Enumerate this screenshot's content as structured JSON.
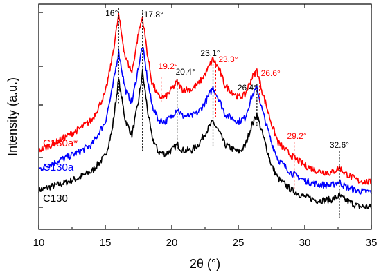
{
  "chart_data": {
    "type": "line",
    "title": "",
    "xlabel": "2θ (°)",
    "ylabel": "Intensity (a.u.)",
    "xlim": [
      10,
      35
    ],
    "x_ticks": [
      10,
      15,
      20,
      25,
      30,
      35
    ],
    "y_ticks_shown": false,
    "grid": false,
    "legend": "series labels left of curves",
    "peaks": [
      16,
      17.8,
      20.4,
      23.1,
      26.4,
      32.6
    ],
    "x": [
      10,
      11,
      12,
      13,
      14,
      15,
      15.5,
      16,
      16.5,
      17,
      17.5,
      17.8,
      18.2,
      18.5,
      19,
      19.5,
      20,
      20.4,
      20.8,
      21.5,
      22,
      22.5,
      23.1,
      23.6,
      24,
      25,
      25.5,
      26,
      26.4,
      26.8,
      27.5,
      28,
      29,
      30,
      31,
      32,
      32.6,
      33,
      34,
      35
    ],
    "series": [
      {
        "name": "C130",
        "color": "#000000",
        "values": [
          0.9,
          1.1,
          1.3,
          1.55,
          1.9,
          2.7,
          4.0,
          6.7,
          4.6,
          3.8,
          5.6,
          7.1,
          5.0,
          3.7,
          2.9,
          2.8,
          3.0,
          3.3,
          3.0,
          3.0,
          3.3,
          3.9,
          4.5,
          3.9,
          3.3,
          2.9,
          3.2,
          4.3,
          4.9,
          3.9,
          2.2,
          1.5,
          0.9,
          0.55,
          0.35,
          0.4,
          0.6,
          0.4,
          0.05,
          0.0
        ]
      },
      {
        "name": "C130a",
        "color": "#0000ff",
        "values": [
          2.0,
          2.3,
          2.6,
          2.9,
          3.3,
          4.5,
          6.1,
          8.2,
          6.2,
          5.5,
          7.4,
          8.5,
          6.6,
          5.4,
          4.6,
          4.5,
          4.8,
          5.2,
          4.8,
          4.8,
          5.0,
          5.5,
          6.3,
          5.6,
          4.9,
          4.5,
          4.7,
          5.8,
          6.3,
          5.1,
          3.4,
          2.5,
          1.8,
          1.4,
          1.2,
          1.15,
          1.35,
          1.1,
          0.85,
          0.8
        ]
      },
      {
        "name": "C130a*",
        "color": "#ff0000",
        "values": [
          3.0,
          3.3,
          3.7,
          4.1,
          4.6,
          6.0,
          7.8,
          10.1,
          7.9,
          7.1,
          9.2,
          10.0,
          7.9,
          6.6,
          5.8,
          5.8,
          6.2,
          6.6,
          6.2,
          6.2,
          6.5,
          7.0,
          7.8,
          7.2,
          6.4,
          5.8,
          5.9,
          6.8,
          7.2,
          6.1,
          4.4,
          3.4,
          2.7,
          2.2,
          1.9,
          1.8,
          2.1,
          1.8,
          1.4,
          1.3
        ]
      }
    ],
    "annotations": [
      {
        "label": "16°",
        "x": 16,
        "color": "#000000"
      },
      {
        "label": "17.8°",
        "x": 17.8,
        "color": "#000000"
      },
      {
        "label": "19.2°",
        "x": 19.2,
        "color": "#ff0000"
      },
      {
        "label": "20.4°",
        "x": 20.4,
        "color": "#000000"
      },
      {
        "label": "23.1°",
        "x": 23.1,
        "color": "#000000"
      },
      {
        "label": "23.3°",
        "x": 23.3,
        "color": "#ff0000"
      },
      {
        "label": "26.4°",
        "x": 26.4,
        "color": "#000000"
      },
      {
        "label": "26.6°",
        "x": 26.6,
        "color": "#ff0000"
      },
      {
        "label": "29.2°",
        "x": 29.2,
        "color": "#ff0000"
      },
      {
        "label": "32.6°",
        "x": 32.6,
        "color": "#000000"
      }
    ]
  }
}
